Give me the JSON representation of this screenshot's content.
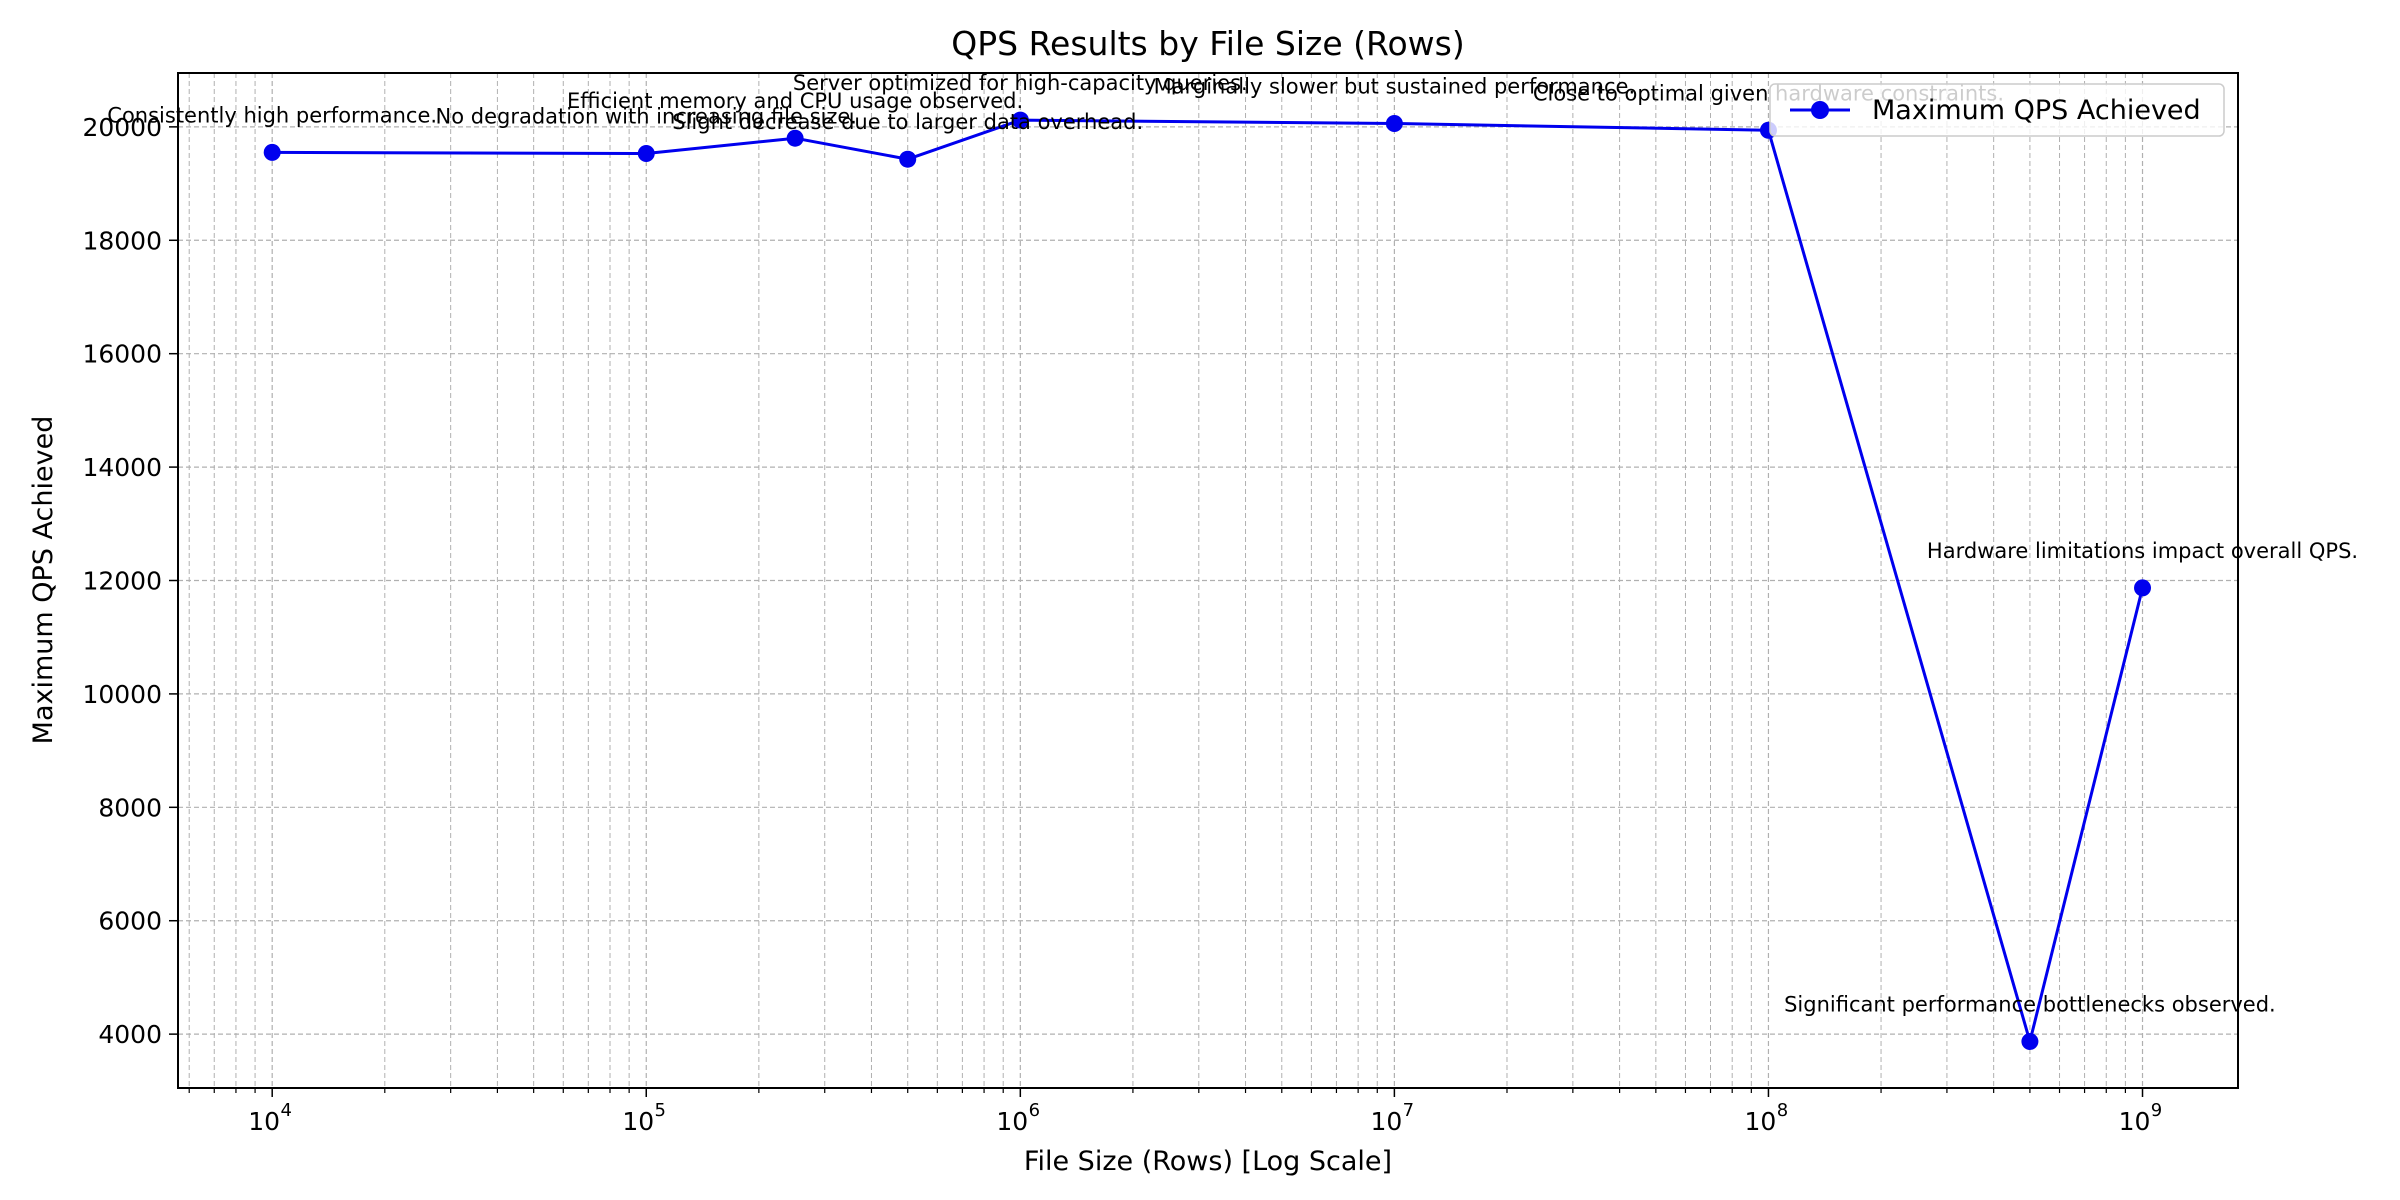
{
  "chart_data": {
    "type": "line",
    "title": "QPS Results by File Size (Rows)",
    "xlabel": "File Size (Rows) [Log Scale]",
    "ylabel": "Maximum QPS Achieved",
    "xscale": "log",
    "xlim": [
      5600,
      1800000000
    ],
    "ylim": [
      3050,
      20950
    ],
    "grid": true,
    "legend_position": "top-right",
    "colors": {
      "series": "#0000ee",
      "grid": "#b0b0b0"
    },
    "x_ticks": [
      {
        "value": 10000,
        "base": "10",
        "exp": "4"
      },
      {
        "value": 100000,
        "base": "10",
        "exp": "5"
      },
      {
        "value": 1000000,
        "base": "10",
        "exp": "6"
      },
      {
        "value": 10000000,
        "base": "10",
        "exp": "7"
      },
      {
        "value": 100000000,
        "base": "10",
        "exp": "8"
      },
      {
        "value": 1000000000,
        "base": "10",
        "exp": "9"
      }
    ],
    "y_ticks": [
      4000,
      6000,
      8000,
      10000,
      12000,
      14000,
      16000,
      18000,
      20000
    ],
    "series": [
      {
        "name": "Maximum QPS Achieved",
        "x": [
          10000,
          100000,
          250000,
          500000,
          1000000,
          10000000,
          100000000,
          500000000,
          1000000000
        ],
        "y": [
          19550,
          19530,
          19800,
          19430,
          20120,
          20060,
          19940,
          3870,
          11870
        ],
        "annotations": [
          "Consistently high performance.",
          "No degradation with increasing file size.",
          "Efficient memory and CPU usage observed.",
          "Slight decrease due to larger data overhead.",
          "Server optimized for high-capacity queries.",
          "Marginally slower but sustained performance.",
          "Close to optimal given hardware constraints.",
          "Significant performance bottlenecks observed.",
          "Hardware limitations impact overall QPS."
        ]
      }
    ]
  }
}
